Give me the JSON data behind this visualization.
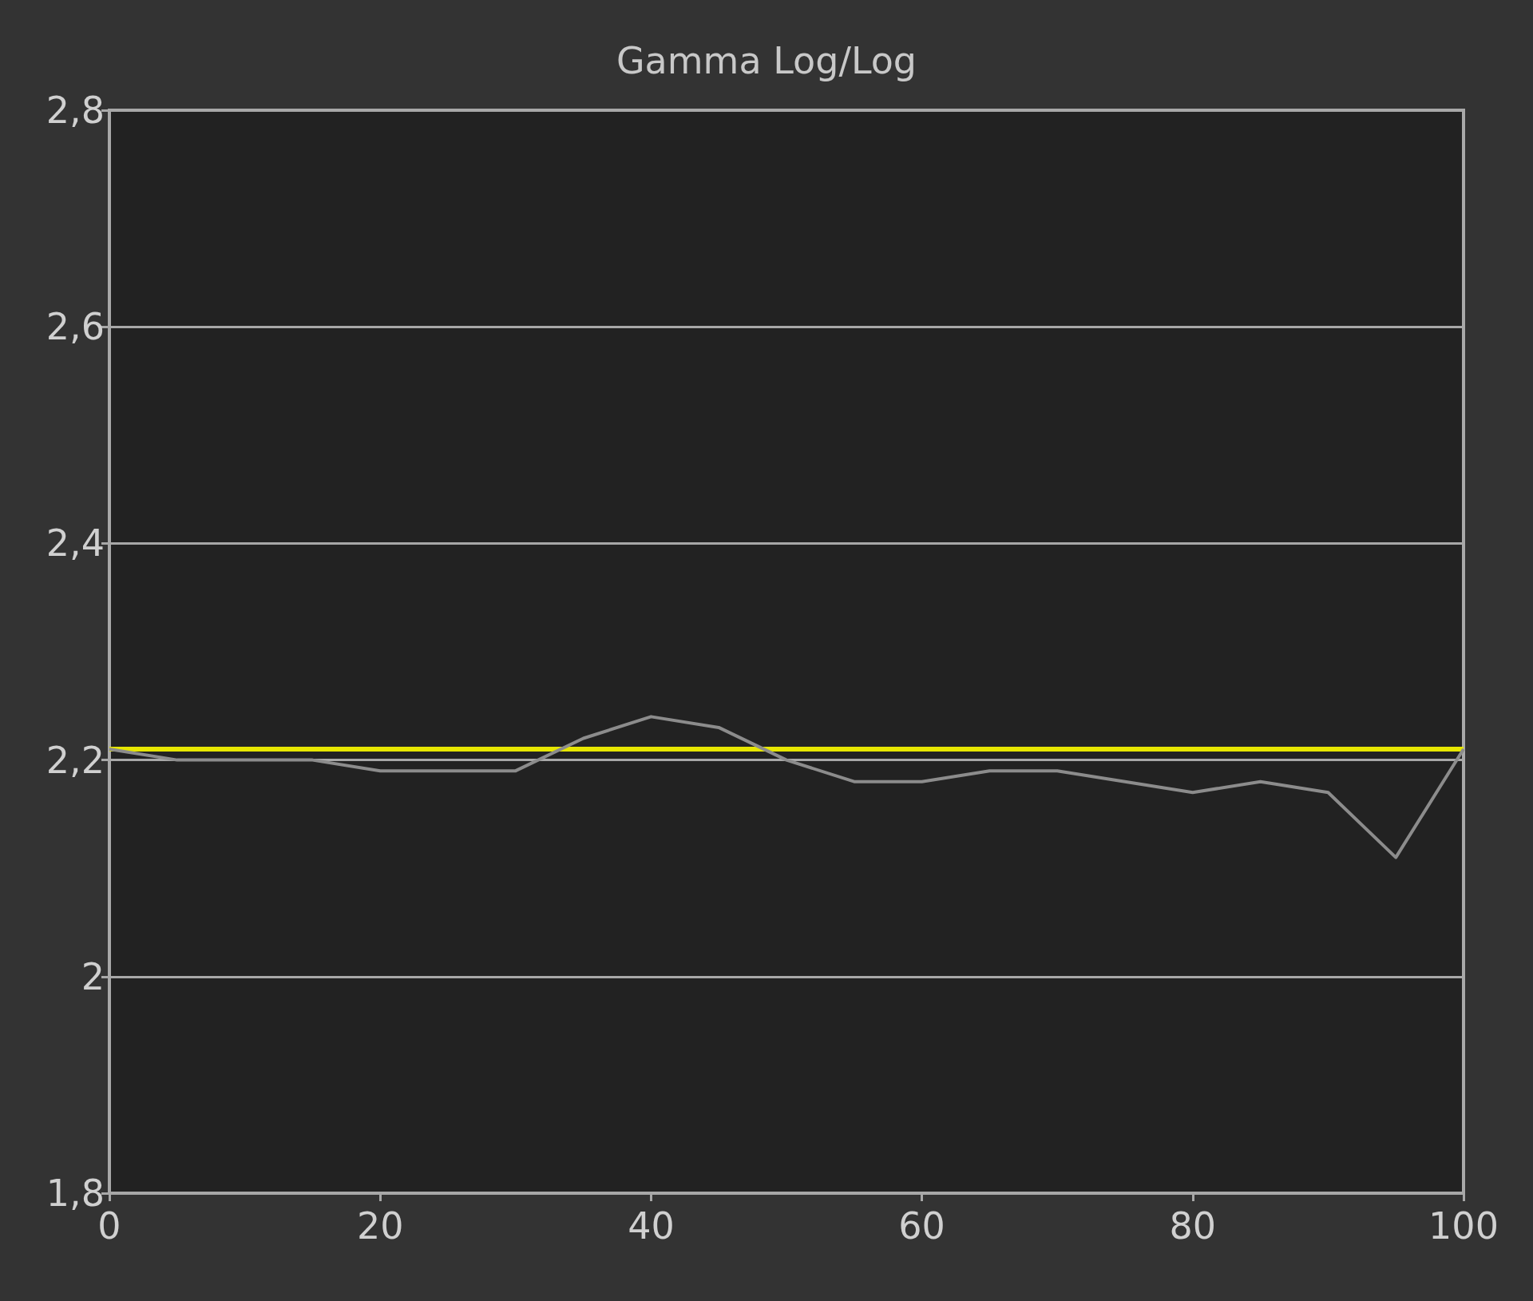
{
  "chart_data": {
    "type": "line",
    "title": "Gamma Log/Log",
    "x": [
      0,
      5,
      10,
      15,
      20,
      25,
      30,
      35,
      40,
      45,
      50,
      55,
      60,
      65,
      70,
      75,
      80,
      85,
      90,
      95,
      100
    ],
    "series": [
      {
        "color": "#8c8c8c",
        "values": [
          2.21,
          2.2,
          2.2,
          2.2,
          2.19,
          2.19,
          2.19,
          2.22,
          2.24,
          2.23,
          2.2,
          2.18,
          2.18,
          2.19,
          2.19,
          2.18,
          2.17,
          2.18,
          2.17,
          2.11,
          2.21
        ]
      }
    ],
    "ref_lines": [
      {
        "axis": "y",
        "value": 2.21,
        "color": "#e6e600"
      }
    ],
    "xlim": [
      0,
      100
    ],
    "xticks": [
      0,
      20,
      40,
      60,
      80,
      100
    ],
    "ylim": [
      1.8,
      2.8
    ],
    "yticks": [
      {
        "value": 1.8,
        "label": "1,8"
      },
      2,
      {
        "value": 2.2,
        "label": "2,2"
      },
      {
        "value": 2.4,
        "label": "2,4"
      },
      {
        "value": 2.6,
        "label": "2,6"
      },
      {
        "value": 2.8,
        "label": "2,8"
      }
    ],
    "grid": "y",
    "marker": "none",
    "line_style": "solid"
  }
}
